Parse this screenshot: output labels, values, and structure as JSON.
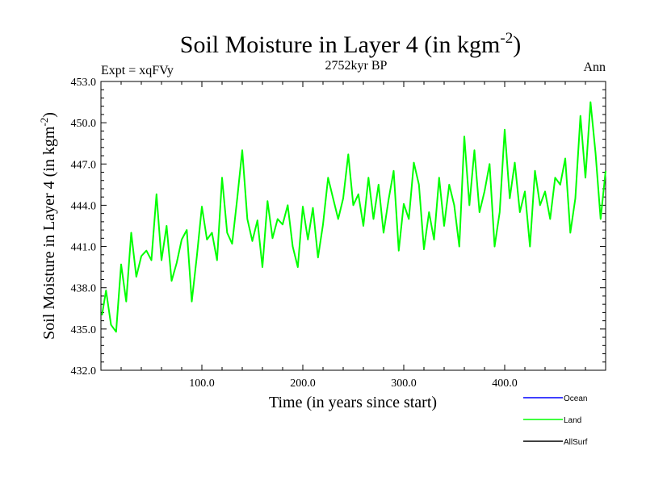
{
  "chart_data": {
    "type": "line",
    "title": "Soil Moisture in Layer 4 (in kgm",
    "title_sup": "-2",
    "title_close": ")",
    "subtitle": "2752kyr BP",
    "left_label": "Expt = xqFVy",
    "right_label": "Ann",
    "xlabel": "Time (in years since start)",
    "ylabel": "Soil Moisture in Layer 4 (in kgm",
    "ylabel_sup": "-2",
    "ylabel_close": ")",
    "xlim": [
      0,
      500
    ],
    "ylim": [
      432,
      453
    ],
    "x_ticks": [
      100,
      200,
      300,
      400
    ],
    "x_tick_labels": [
      "100.0",
      "200.0",
      "300.0",
      "400.0"
    ],
    "y_ticks": [
      432,
      435,
      438,
      441,
      444,
      447,
      450,
      453
    ],
    "y_tick_labels": [
      "432.0",
      "435.0",
      "438.0",
      "441.0",
      "444.0",
      "447.0",
      "450.0",
      "453.0"
    ],
    "legend": [
      {
        "name": "Ocean",
        "color": "#0000ff"
      },
      {
        "name": "Land",
        "color": "#00ff00"
      },
      {
        "name": "AllSurf",
        "color": "#000000"
      }
    ],
    "series": [
      {
        "name": "Land",
        "color": "#00ff00",
        "x": [
          1,
          5,
          10,
          15,
          20,
          25,
          30,
          35,
          40,
          45,
          50,
          55,
          60,
          65,
          70,
          75,
          80,
          85,
          90,
          95,
          100,
          105,
          110,
          115,
          120,
          125,
          130,
          135,
          140,
          145,
          150,
          155,
          160,
          165,
          170,
          175,
          180,
          185,
          190,
          195,
          200,
          205,
          210,
          215,
          220,
          225,
          230,
          235,
          240,
          245,
          250,
          255,
          260,
          265,
          270,
          275,
          280,
          285,
          290,
          295,
          300,
          305,
          310,
          315,
          320,
          325,
          330,
          335,
          340,
          345,
          350,
          355,
          360,
          365,
          370,
          375,
          380,
          385,
          390,
          395,
          400,
          405,
          410,
          415,
          420,
          425,
          430,
          435,
          440,
          445,
          450,
          455,
          460,
          465,
          470,
          475,
          480,
          485,
          490,
          495,
          500
        ],
        "values": [
          436.0,
          437.8,
          435.3,
          434.8,
          439.7,
          437.0,
          442.0,
          438.8,
          440.3,
          440.7,
          440.0,
          444.8,
          440.0,
          442.5,
          438.5,
          439.8,
          441.5,
          442.2,
          437.0,
          440.3,
          443.9,
          441.5,
          442.0,
          440.0,
          446.0,
          442.0,
          441.2,
          444.5,
          448.0,
          443.0,
          441.4,
          442.9,
          439.5,
          444.3,
          441.6,
          443.0,
          442.6,
          444.0,
          441.0,
          439.5,
          443.9,
          441.5,
          443.8,
          440.2,
          442.6,
          446.0,
          444.5,
          443.0,
          444.5,
          447.7,
          444.0,
          444.8,
          442.5,
          446.0,
          443.0,
          445.5,
          442.0,
          444.4,
          446.5,
          440.7,
          444.1,
          443.0,
          447.1,
          445.5,
          440.8,
          443.5,
          441.5,
          446.0,
          442.5,
          445.5,
          444.0,
          441.0,
          449.0,
          444.0,
          448.0,
          443.5,
          445.0,
          447.0,
          441.0,
          443.5,
          449.5,
          444.5,
          447.1,
          443.5,
          445.0,
          441.0,
          446.5,
          444.0,
          445.0,
          443.0,
          446.0,
          445.5,
          447.4,
          442.0,
          444.5,
          450.5,
          446.0,
          451.5,
          447.8,
          443.0,
          446.5
        ]
      }
    ]
  }
}
